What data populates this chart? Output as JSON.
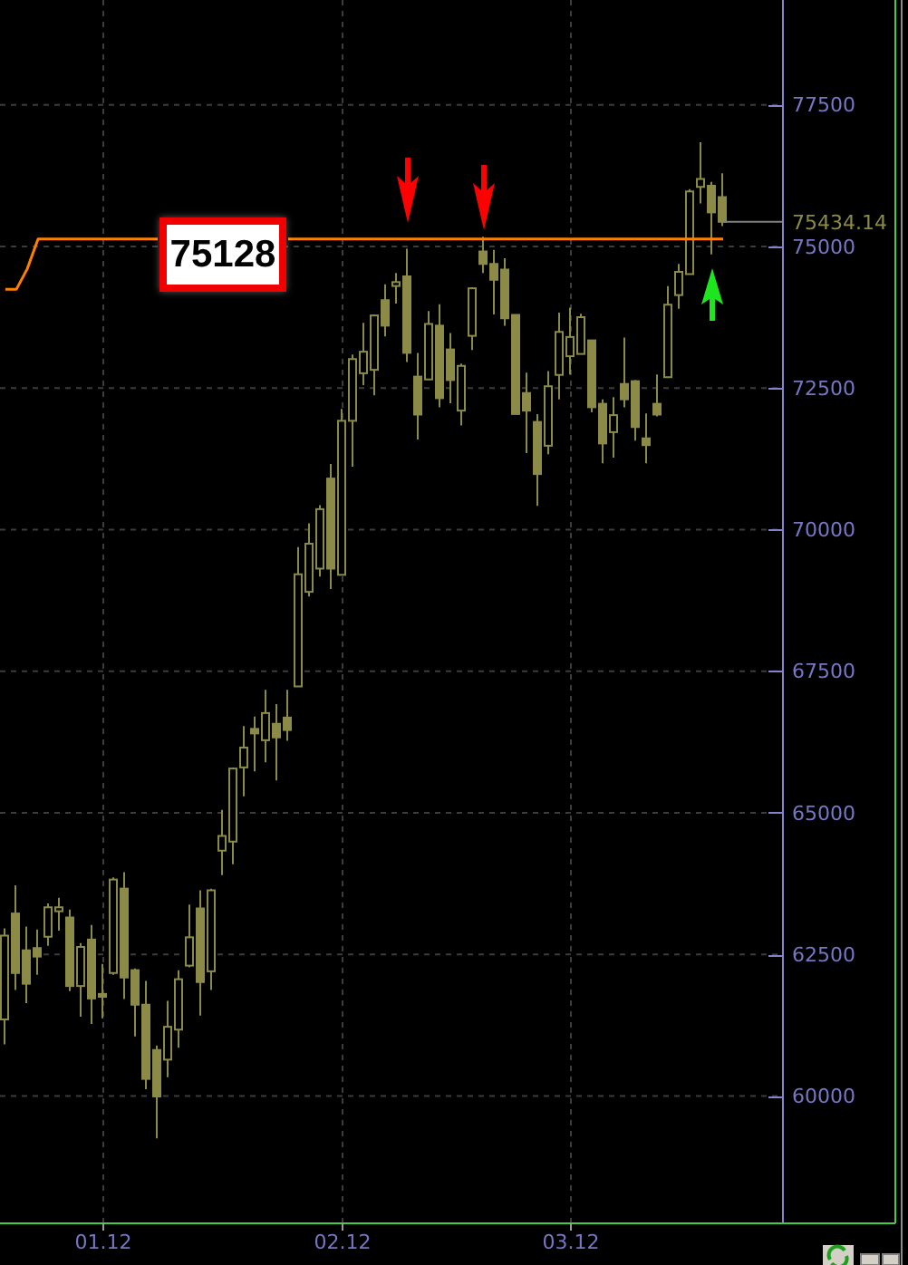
{
  "chart_data": {
    "type": "candlestick",
    "categories": [
      null,
      null,
      null,
      null,
      null,
      null,
      null,
      null,
      null,
      "01.12",
      null,
      null,
      null,
      null,
      null,
      null,
      null,
      null,
      null,
      null,
      null,
      null,
      null,
      null,
      null,
      null,
      null,
      null,
      null,
      null,
      null,
      "02.12",
      null,
      null,
      null,
      null,
      null,
      null,
      null,
      null,
      null,
      null,
      null,
      null,
      null,
      null,
      null,
      null,
      null,
      null,
      null,
      null,
      "03.12",
      null,
      null,
      null,
      null,
      null,
      null,
      null,
      null,
      null,
      null,
      null,
      null,
      null,
      null
    ],
    "ohlc": [
      [
        61350,
        62960,
        60910,
        62830
      ],
      [
        63220,
        63720,
        61870,
        62170
      ],
      [
        62570,
        62990,
        61640,
        61980
      ],
      [
        62610,
        62940,
        62140,
        62460
      ],
      [
        62810,
        63400,
        62650,
        63330
      ],
      [
        63260,
        63500,
        62920,
        63330
      ],
      [
        63150,
        63290,
        61850,
        61940
      ],
      [
        61940,
        62700,
        61400,
        62630
      ],
      [
        62760,
        63020,
        61270,
        61720
      ],
      [
        61800,
        62330,
        61370,
        61750
      ],
      [
        62170,
        63860,
        62140,
        63820
      ],
      [
        63660,
        63950,
        61710,
        62090
      ],
      [
        62220,
        62250,
        61050,
        61610
      ],
      [
        61610,
        62030,
        60120,
        60300
      ],
      [
        60810,
        60890,
        59250,
        59990
      ],
      [
        60640,
        61680,
        60330,
        61220
      ],
      [
        61170,
        62220,
        60850,
        62060
      ],
      [
        62300,
        63380,
        62270,
        62800
      ],
      [
        63310,
        63630,
        61420,
        62010
      ],
      [
        62200,
        63660,
        61870,
        63630
      ],
      [
        64330,
        65050,
        63900,
        64590
      ],
      [
        64490,
        65800,
        64090,
        65780
      ],
      [
        65800,
        66530,
        65290,
        66150
      ],
      [
        66480,
        66700,
        65730,
        66400
      ],
      [
        66280,
        67170,
        65890,
        66760
      ],
      [
        66570,
        66920,
        65570,
        66330
      ],
      [
        66680,
        67170,
        66270,
        66460
      ],
      [
        67230,
        69690,
        67230,
        69210
      ],
      [
        68900,
        70110,
        68820,
        69750
      ],
      [
        69310,
        70430,
        69170,
        70360
      ],
      [
        70900,
        71160,
        68950,
        69310
      ],
      [
        69200,
        72130,
        69200,
        71920
      ],
      [
        71920,
        73090,
        71110,
        73010
      ],
      [
        72760,
        73650,
        72550,
        73140
      ],
      [
        72820,
        73800,
        72370,
        73780
      ],
      [
        74050,
        74330,
        73410,
        73600
      ],
      [
        74300,
        74530,
        73990,
        74370
      ],
      [
        74470,
        74960,
        72960,
        73120
      ],
      [
        72700,
        73120,
        71590,
        72030
      ],
      [
        72650,
        73860,
        72650,
        73630
      ],
      [
        73600,
        73980,
        72160,
        72320
      ],
      [
        73180,
        73470,
        72230,
        72640
      ],
      [
        72100,
        72930,
        71840,
        72890
      ],
      [
        73420,
        74280,
        73170,
        74260
      ],
      [
        74910,
        75170,
        74530,
        74690
      ],
      [
        74690,
        74940,
        73800,
        74410
      ],
      [
        74590,
        74790,
        73600,
        73730
      ],
      [
        73790,
        73800,
        72030,
        72040
      ],
      [
        72410,
        72770,
        71350,
        72100
      ],
      [
        71900,
        72040,
        70420,
        70980
      ],
      [
        71480,
        72800,
        71330,
        72530
      ],
      [
        72730,
        73830,
        72300,
        73490
      ],
      [
        73060,
        73920,
        72740,
        73400
      ],
      [
        73100,
        73810,
        73100,
        73750
      ],
      [
        73340,
        73350,
        72070,
        72160
      ],
      [
        72220,
        72300,
        71170,
        71520
      ],
      [
        71720,
        72340,
        71270,
        72020
      ],
      [
        72570,
        73390,
        72160,
        72300
      ],
      [
        72620,
        72640,
        71570,
        71810
      ],
      [
        71610,
        72050,
        71170,
        71490
      ],
      [
        72220,
        72740,
        72000,
        72030
      ],
      [
        72690,
        74300,
        72690,
        73970
      ],
      [
        74140,
        74690,
        73900,
        74550
      ],
      [
        74510,
        76010,
        74510,
        75970
      ],
      [
        76050,
        76840,
        75760,
        76190
      ],
      [
        76070,
        76140,
        74860,
        75600
      ],
      [
        75870,
        76290,
        75360,
        75434.14
      ]
    ],
    "color": "#8b8b47",
    "series": [
      {
        "type": "line",
        "color": "#ff8000",
        "values": [
          74240,
          74240,
          74600,
          75130,
          75130,
          75130,
          75130,
          75130,
          75130,
          75130,
          75130,
          75130,
          75130,
          75130,
          75130,
          null,
          null,
          null,
          null,
          null,
          null,
          null,
          null,
          null,
          null,
          null,
          75130,
          75130,
          75130,
          75130,
          75130,
          75130,
          75130,
          75130,
          75130,
          75130,
          75130,
          75130,
          75130,
          75130,
          75130,
          75130,
          75130,
          75130,
          75130,
          75130,
          75130,
          75130,
          75130,
          75130,
          75130,
          75130,
          75130,
          75130,
          75130,
          75130,
          75130,
          75130,
          75130,
          75130,
          75130,
          75130,
          75130,
          75130,
          75130,
          75130,
          75130
        ]
      }
    ],
    "ylim": [
      57750,
      79350
    ],
    "yticks": [
      60000,
      62500,
      65000,
      67500,
      70000,
      72500,
      75000,
      77500
    ],
    "grid": true,
    "ref_lines": [
      {
        "axis": "y",
        "value": 75434.14,
        "label": "75434.14",
        "color": "#808080"
      }
    ],
    "annotations": [
      "75128"
    ]
  }
}
